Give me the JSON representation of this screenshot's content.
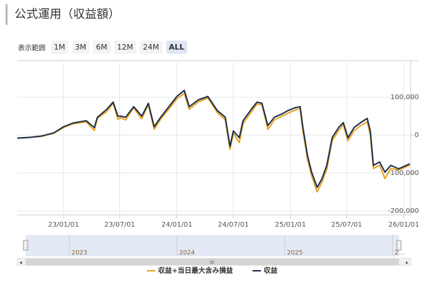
{
  "header": {
    "title": "公式運用（収益額）"
  },
  "range_selector": {
    "label": "表示範囲",
    "buttons": [
      "1M",
      "3M",
      "6M",
      "12M",
      "24M",
      "ALL"
    ],
    "selected_index": 5
  },
  "chart_data": {
    "type": "line",
    "x": [
      "2022-08-05",
      "2022-09-15",
      "2022-10-25",
      "2022-12-01",
      "2023-01-01",
      "2023-02-01",
      "2023-03-15",
      "2023-04-10",
      "2023-04-20",
      "2023-05-20",
      "2023-06-10",
      "2023-06-25",
      "2023-07-05",
      "2023-07-20",
      "2023-08-15",
      "2023-09-10",
      "2023-10-01",
      "2023-10-20",
      "2023-11-10",
      "2023-12-15",
      "2024-01-01",
      "2024-01-25",
      "2024-02-10",
      "2024-03-10",
      "2024-04-10",
      "2024-05-10",
      "2024-06-05",
      "2024-06-20",
      "2024-07-01",
      "2024-07-20",
      "2024-08-01",
      "2024-08-25",
      "2024-09-15",
      "2024-10-01",
      "2024-10-20",
      "2024-11-10",
      "2024-12-05",
      "2024-12-25",
      "2025-01-15",
      "2025-02-01",
      "2025-02-10",
      "2025-02-25",
      "2025-03-10",
      "2025-03-28",
      "2025-04-12",
      "2025-04-28",
      "2025-05-15",
      "2025-06-05",
      "2025-06-20",
      "2025-07-05",
      "2025-07-25",
      "2025-08-15",
      "2025-09-05",
      "2025-09-15",
      "2025-09-25",
      "2025-10-15",
      "2025-11-01",
      "2025-11-20",
      "2025-12-15",
      "2026-01-20"
    ],
    "series": [
      {
        "name": "収益+当日最大含み損益",
        "color": "#e8a020",
        "values": [
          -8000,
          -6000,
          -3000,
          5000,
          20000,
          30000,
          35000,
          12000,
          44000,
          62000,
          84000,
          42000,
          46000,
          40000,
          72000,
          43000,
          80000,
          15000,
          42000,
          78000,
          96000,
          110000,
          68000,
          88000,
          98000,
          60000,
          40000,
          -38000,
          5000,
          -20000,
          30000,
          58000,
          82000,
          80000,
          15000,
          40000,
          50000,
          58000,
          66000,
          70000,
          10000,
          -65000,
          -108000,
          -150000,
          -125000,
          -90000,
          -15000,
          12000,
          28000,
          -15000,
          12000,
          25000,
          35000,
          0,
          -88000,
          -80000,
          -115000,
          -88000,
          -92000,
          -80000
        ]
      },
      {
        "name": "収益",
        "color": "#1a2f4a",
        "values": [
          -8000,
          -6000,
          -2000,
          6000,
          22000,
          32000,
          38000,
          20000,
          47000,
          68000,
          87000,
          50000,
          50000,
          47000,
          75000,
          50000,
          84000,
          22000,
          47000,
          84000,
          102000,
          118000,
          75000,
          93000,
          102000,
          65000,
          47000,
          -30000,
          11000,
          -7000,
          38000,
          65000,
          87000,
          84000,
          25000,
          47000,
          56000,
          65000,
          72000,
          75000,
          20000,
          -55000,
          -98000,
          -138000,
          -116000,
          -80000,
          -7000,
          20000,
          33000,
          -7000,
          20000,
          33000,
          44000,
          11000,
          -80000,
          -71000,
          -98000,
          -80000,
          -89000,
          -76000
        ]
      }
    ],
    "xlim": [
      "2022-08-05",
      "2026-01-23"
    ],
    "xticks": [
      {
        "value": "2023-01-01",
        "label": "23/01/01"
      },
      {
        "value": "2023-07-01",
        "label": "23/07/01"
      },
      {
        "value": "2024-01-01",
        "label": "24/01/01"
      },
      {
        "value": "2024-07-01",
        "label": "24/07/01"
      },
      {
        "value": "2025-01-01",
        "label": "25/01/01"
      },
      {
        "value": "2025-07-01",
        "label": "25/07/01"
      },
      {
        "value": "2026-01-01",
        "label": "26/01/01"
      }
    ],
    "ylim": [
      -211000,
      193000
    ],
    "yticks": [
      {
        "value": 100000,
        "label": "100,000"
      },
      0,
      {
        "value": -100000,
        "label": "-100,000"
      },
      {
        "value": -200000,
        "label": "-200,000"
      }
    ],
    "navigator_ticks": [
      {
        "value": "2023-01-01",
        "label": "2023"
      },
      {
        "value": "2024-01-01",
        "label": "2024"
      },
      {
        "value": "2025-01-01",
        "label": "2025"
      },
      {
        "value": "2026-01-01",
        "label": "2..."
      }
    ],
    "grid": true
  }
}
